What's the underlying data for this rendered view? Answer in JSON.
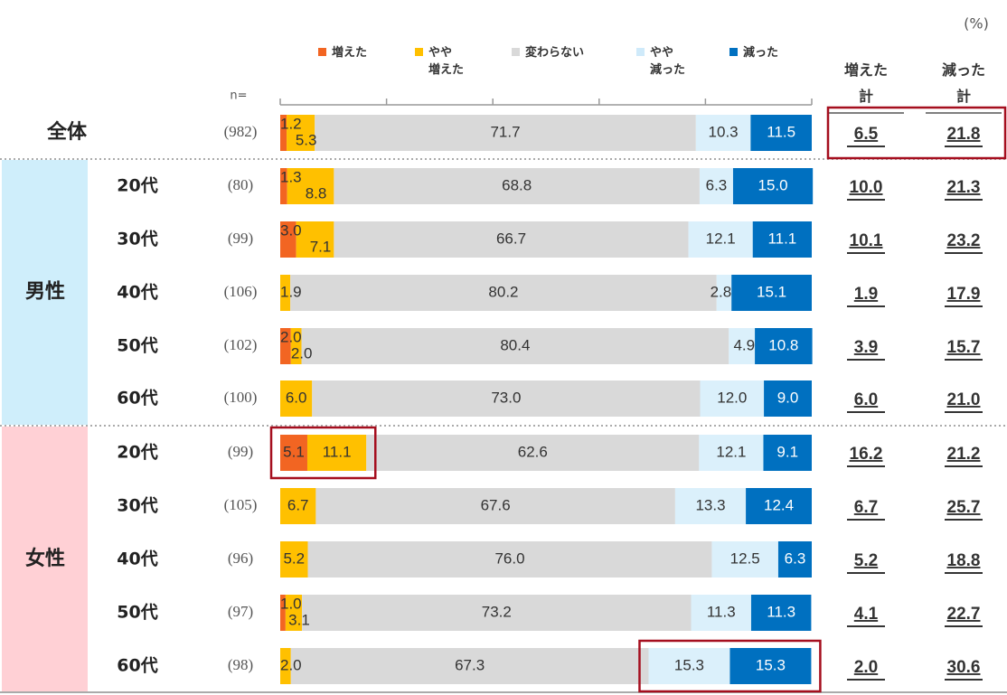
{
  "chart_data": {
    "type": "bar",
    "stacked": true,
    "orientation": "horizontal",
    "unit_label": "(%)",
    "n_label": "n=",
    "xlim": [
      0,
      100
    ],
    "legend": [
      "増えた",
      "やや\n増えた",
      "変わらない",
      "やや\n減った",
      "減った"
    ],
    "total_headers": {
      "increase": "増えた\n計",
      "decrease": "減った\n計"
    },
    "groups": [
      {
        "label": "全体",
        "bg": ""
      },
      {
        "label": "男性",
        "bg": "#cfeefb"
      },
      {
        "label": "女性",
        "bg": "#ffd0d5"
      }
    ],
    "series_colors": [
      "#f26522",
      "#ffc000",
      "#d9d9d9",
      "#dbf0fb",
      "#0070c0"
    ],
    "highlight_color": "#a50e1e",
    "rows": [
      {
        "group": 0,
        "age": "",
        "n": "(982)",
        "values": [
          1.2,
          5.3,
          71.7,
          10.3,
          11.5
        ],
        "labels": [
          "1.2",
          "5.3",
          "71.7",
          "10.3",
          "11.5"
        ],
        "inc_total": "6.5",
        "dec_total": "21.8"
      },
      {
        "group": 1,
        "age": "20代",
        "n": "(80)",
        "values": [
          1.3,
          8.8,
          68.8,
          6.3,
          15.0
        ],
        "labels": [
          "1.3",
          "8.8",
          "68.8",
          "6.3",
          "15.0"
        ],
        "inc_total": "10.0",
        "dec_total": "21.3"
      },
      {
        "group": 1,
        "age": "30代",
        "n": "(99)",
        "values": [
          3.0,
          7.1,
          66.7,
          12.1,
          11.1
        ],
        "labels": [
          "3.0",
          "7.1",
          "66.7",
          "12.1",
          "11.1"
        ],
        "inc_total": "10.1",
        "dec_total": "23.2"
      },
      {
        "group": 1,
        "age": "40代",
        "n": "(106)",
        "values": [
          0,
          1.9,
          80.2,
          2.8,
          15.1
        ],
        "labels": [
          "",
          "1.9",
          "80.2",
          "2.8",
          "15.1"
        ],
        "inc_total": "1.9",
        "dec_total": "17.9"
      },
      {
        "group": 1,
        "age": "50代",
        "n": "(102)",
        "values": [
          2.0,
          2.0,
          80.4,
          4.9,
          10.8
        ],
        "labels": [
          "2.0",
          "2.0",
          "80.4",
          "4.9",
          "10.8"
        ],
        "inc_total": "3.9",
        "dec_total": "15.7"
      },
      {
        "group": 1,
        "age": "60代",
        "n": "(100)",
        "values": [
          0,
          6.0,
          73.0,
          12.0,
          9.0
        ],
        "labels": [
          "",
          "6.0",
          "73.0",
          "12.0",
          "9.0"
        ],
        "inc_total": "6.0",
        "dec_total": "21.0"
      },
      {
        "group": 2,
        "age": "20代",
        "n": "(99)",
        "values": [
          5.1,
          11.1,
          62.6,
          12.1,
          9.1
        ],
        "labels": [
          "5.1",
          "11.1",
          "62.6",
          "12.1",
          "9.1"
        ],
        "inc_total": "16.2",
        "dec_total": "21.2"
      },
      {
        "group": 2,
        "age": "30代",
        "n": "(105)",
        "values": [
          0,
          6.7,
          67.6,
          13.3,
          12.4
        ],
        "labels": [
          "",
          "6.7",
          "67.6",
          "13.3",
          "12.4"
        ],
        "inc_total": "6.7",
        "dec_total": "25.7"
      },
      {
        "group": 2,
        "age": "40代",
        "n": "(96)",
        "values": [
          0,
          5.2,
          76.0,
          12.5,
          6.3
        ],
        "labels": [
          "",
          "5.2",
          "76.0",
          "12.5",
          "6.3"
        ],
        "inc_total": "5.2",
        "dec_total": "18.8"
      },
      {
        "group": 2,
        "age": "50代",
        "n": "(97)",
        "values": [
          1.0,
          3.1,
          73.2,
          11.3,
          11.3
        ],
        "labels": [
          "1.0",
          "3.1",
          "73.2",
          "11.3",
          "11.3"
        ],
        "inc_total": "4.1",
        "dec_total": "22.7"
      },
      {
        "group": 2,
        "age": "60代",
        "n": "(98)",
        "values": [
          0,
          2.0,
          67.3,
          15.3,
          15.3
        ],
        "labels": [
          "",
          "2.0",
          "67.3",
          "15.3",
          "15.3"
        ],
        "inc_total": "2.0",
        "dec_total": "30.6"
      }
    ],
    "highlights": [
      {
        "type": "totals",
        "row": 0
      },
      {
        "type": "bar_segments",
        "row": 6,
        "from": 0,
        "to": 1
      },
      {
        "type": "bar_segments",
        "row": 10,
        "from": 3,
        "to": 4
      }
    ]
  }
}
